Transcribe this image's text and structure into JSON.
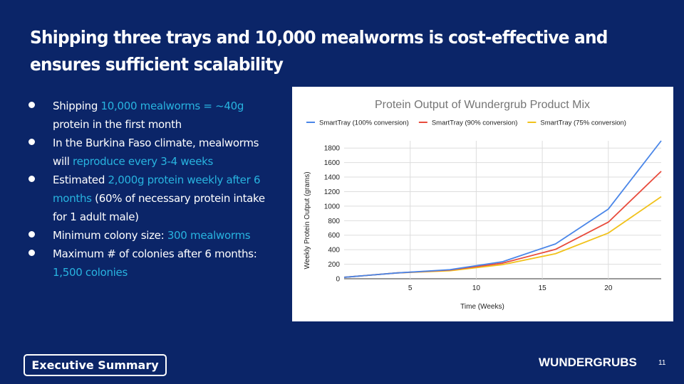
{
  "slide": {
    "title": "Shipping three trays and 10,000 mealworms is cost-effective and ensures sufficient scalability",
    "badge": "Executive Summary",
    "brand": "WUNDERGRUBS",
    "page_number": "11",
    "colors": {
      "background": "#0b2568",
      "highlight": "#28b4e0"
    }
  },
  "bullets": [
    {
      "p1": "Shipping ",
      "h1": "10,000 mealworms = ~40g",
      "p2": " protein in the first month",
      "h2": "",
      "p3": ""
    },
    {
      "p1": "In the Burkina Faso climate, mealworms will ",
      "h1": "reproduce every 3-4 weeks",
      "p2": "",
      "h2": "",
      "p3": ""
    },
    {
      "p1": "Estimated ",
      "h1": "2,000g protein weekly after 6 months",
      "p2": " (60% of necessary protein intake for 1 adult male)",
      "h2": "",
      "p3": ""
    },
    {
      "p1": "Minimum colony size: ",
      "h1": "300 mealworms",
      "p2": "",
      "h2": "",
      "p3": ""
    },
    {
      "p1": "Maximum # of colonies after 6 months: ",
      "h1": "1,500 colonies",
      "p2": "",
      "h2": "",
      "p3": ""
    }
  ],
  "chart_data": {
    "type": "line",
    "title": "Protein Output of Wundergrub Product Mix",
    "xlabel": "Time (Weeks)",
    "ylabel": "Weekly Protein Output (grams)",
    "xlim": [
      0,
      24
    ],
    "ylim": [
      0,
      1900
    ],
    "x_ticks": [
      5,
      10,
      15,
      20
    ],
    "y_ticks": [
      0,
      200,
      400,
      600,
      800,
      1000,
      1200,
      1400,
      1600,
      1800
    ],
    "grid": true,
    "legend_position": "top",
    "x": [
      0,
      4,
      8,
      12,
      16,
      20,
      24
    ],
    "series": [
      {
        "name": "SmartTray (100% conversion)",
        "color": "#4a86e8",
        "values": [
          20,
          80,
          125,
          235,
          480,
          960,
          1900
        ]
      },
      {
        "name": "SmartTray (90% conversion)",
        "color": "#e84b3c",
        "values": [
          20,
          80,
          120,
          215,
          405,
          780,
          1480
        ]
      },
      {
        "name": "SmartTray (75% conversion)",
        "color": "#f1c21b",
        "values": [
          20,
          80,
          110,
          195,
          345,
          630,
          1130
        ]
      }
    ]
  }
}
